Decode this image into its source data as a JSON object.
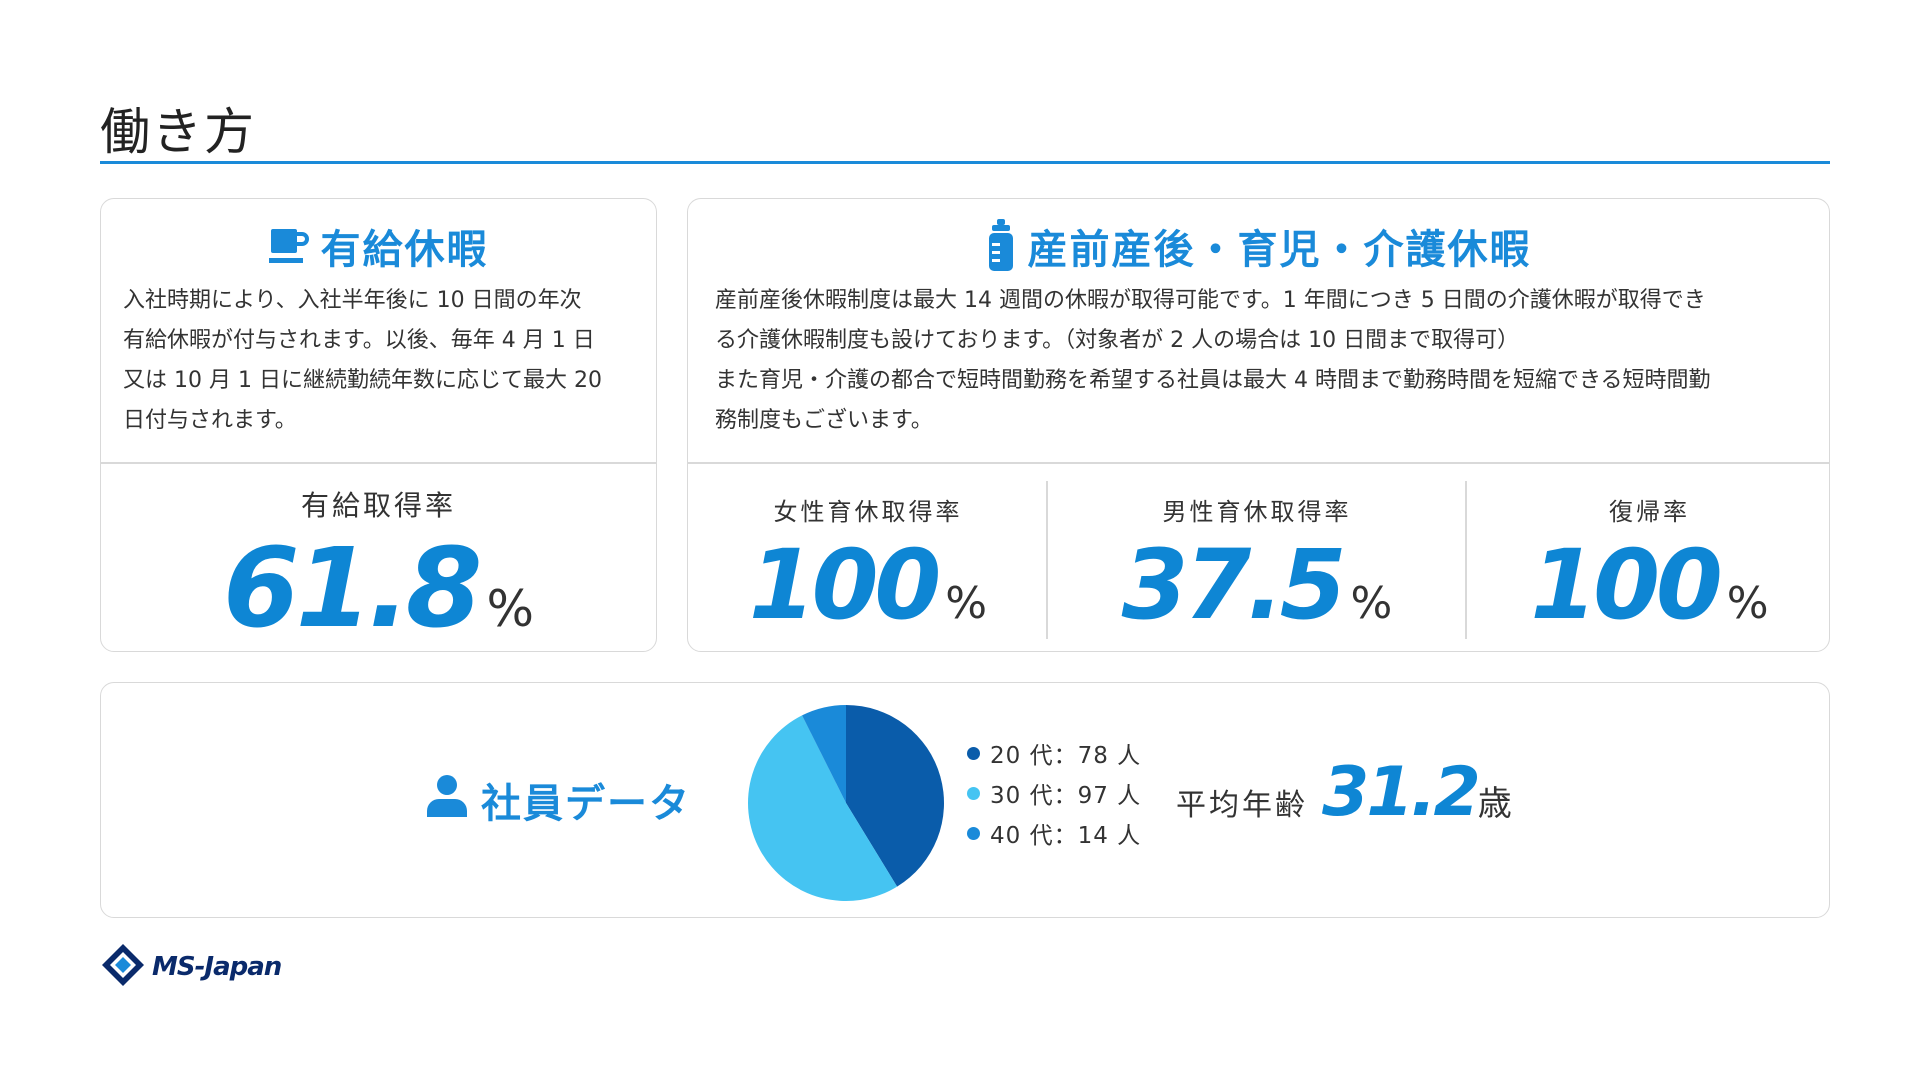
{
  "page": {
    "title": "働き方"
  },
  "paid_leave": {
    "heading": "有給休暇",
    "icon": "coffee-cup-icon",
    "description": "入社時期により、入社半年後に 10 日間の年次\n有給休暇が付与されます。以後、毎年 4 月 1 日\n又は 10 月 1 日に継続勤続年数に応じて最大 20\n日付与されます。",
    "stat_label": "有給取得率",
    "stat_value": "61.8",
    "stat_unit": "%"
  },
  "maternity_leave": {
    "heading": "産前産後・育児・介護休暇",
    "icon": "baby-bottle-icon",
    "description": "産前産後休暇制度は最大 14 週間の休暇が取得可能です。1 年間につき 5 日間の介護休暇が取得でき\nる介護休暇制度も設けております。（対象者が 2 人の場合は 10 日間まで取得可）\nまた育児・介護の都合で短時間勤務を希望する社員は最大 4 時間まで勤務時間を短縮できる短時間勤\n務制度もございます。",
    "stats": [
      {
        "label": "女性育休取得率",
        "value": "100",
        "unit": "%"
      },
      {
        "label": "男性育休取得率",
        "value": "37.5",
        "unit": "%"
      },
      {
        "label": "復帰率",
        "value": "100",
        "unit": "%"
      }
    ]
  },
  "employee_data": {
    "heading": "社員データ",
    "icon": "person-icon",
    "legend": [
      {
        "label": "20 代：78 人",
        "color": "#0a5caa"
      },
      {
        "label": "30 代：97 人",
        "color": "#45c4f2"
      },
      {
        "label": "40 代：14 人",
        "color": "#1a8ad9"
      }
    ],
    "avg_age_label": "平均年齢",
    "avg_age_value": "31.2",
    "avg_age_unit": "歳"
  },
  "chart_data": {
    "type": "pie",
    "categories": [
      "20 代",
      "30 代",
      "40 代"
    ],
    "values": [
      78,
      97,
      14
    ],
    "colors": [
      "#0a5caa",
      "#45c4f2",
      "#1a8ad9"
    ]
  },
  "footer": {
    "logo_text": "MS-Japan"
  },
  "colors": {
    "accent": "#1a8ad9",
    "number": "#0e86d4",
    "border": "#d9d9d9"
  }
}
